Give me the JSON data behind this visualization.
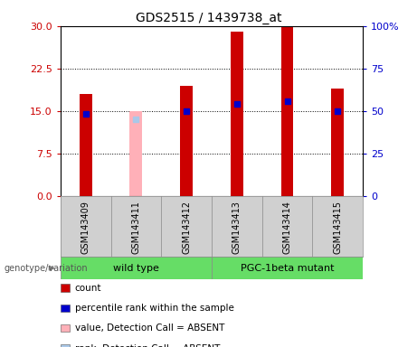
{
  "title": "GDS2515 / 1439738_at",
  "samples": [
    "GSM143409",
    "GSM143411",
    "GSM143412",
    "GSM143413",
    "GSM143414",
    "GSM143415"
  ],
  "red_bar_heights": [
    18.0,
    null,
    19.5,
    29.0,
    30.0,
    19.0
  ],
  "pink_bar_height": 15.0,
  "pink_bar_index": 1,
  "blue_dot_values": [
    14.5,
    null,
    15.0,
    16.2,
    16.8,
    15.0
  ],
  "light_blue_dot_value": 13.5,
  "light_blue_dot_index": 1,
  "ylim_left": [
    0,
    30
  ],
  "ylim_right": [
    0,
    100
  ],
  "yticks_left": [
    0,
    7.5,
    15,
    22.5,
    30
  ],
  "yticks_right": [
    0,
    25,
    50,
    75,
    100
  ],
  "yticklabels_right": [
    "0",
    "25",
    "50",
    "75",
    "100%"
  ],
  "colors": {
    "red_bar": "#cc0000",
    "pink_bar": "#ffb0b8",
    "blue_dot": "#0000cc",
    "light_blue_dot": "#aac8e8",
    "background": "#d0d0d0",
    "left_tick": "#cc0000",
    "right_tick": "#0000cc",
    "green_group": "#66dd66"
  },
  "legend": [
    {
      "color": "#cc0000",
      "label": "count"
    },
    {
      "color": "#0000cc",
      "label": "percentile rank within the sample"
    },
    {
      "color": "#ffb0b8",
      "label": "value, Detection Call = ABSENT"
    },
    {
      "color": "#aac8e8",
      "label": "rank, Detection Call = ABSENT"
    }
  ]
}
